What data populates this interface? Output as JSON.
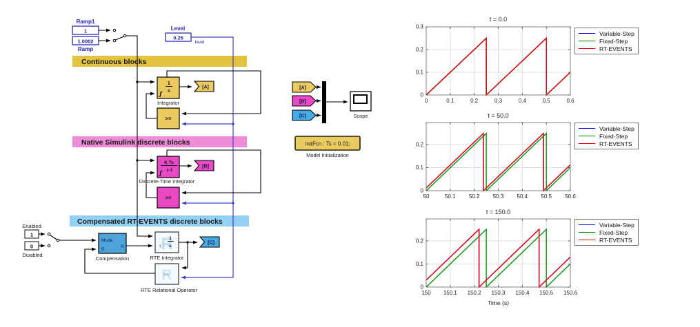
{
  "diagram": {
    "sources": {
      "ramp1_label": "Ramp1",
      "ramp1_value": "1",
      "ramp_value": "1.0002",
      "ramp_label": "Ramp"
    },
    "level": {
      "label": "Level",
      "value": "0.25",
      "wire_label": "level"
    },
    "banners": {
      "continuous": "Continuous blocks",
      "native": "Native Simulink discrete blocks",
      "compensated": "Compensated RT-EVENTS discrete blocks"
    },
    "integrator": {
      "num": "1",
      "den": "s",
      "reset_glyph": "ƒ",
      "label": "Integrator"
    },
    "relop_continuous": {
      "op": ">="
    },
    "dti": {
      "num": "K Ts",
      "den": "z-1",
      "reset_glyph": "ƒ",
      "label": "Discrete-Time Integrator"
    },
    "relop_discrete": {
      "op": ">="
    },
    "goto_tags": {
      "a": "[A]",
      "b": "[B]",
      "c": "[C]"
    },
    "enable": {
      "enabled_label": "Enabled",
      "enabled_value": "1",
      "disabled_value": "0",
      "disabled_label": "Disabled"
    },
    "compensation": {
      "port_mode": "Mode",
      "port_r_in": "R",
      "port_r_out": "R",
      "label": "Compensation"
    },
    "rte_integrator": {
      "num": "1",
      "den": "s",
      "arrow": "↑",
      "watermark": "R",
      "label": "RTE Integrator"
    },
    "rte_relop": {
      "op": ">=",
      "watermark": "R",
      "label": "RTE Relational Operator"
    },
    "from_tags": {
      "a": "[A]",
      "b": "[B]",
      "c": "[C]"
    },
    "scope": {
      "label": "Scope"
    },
    "initfcn": {
      "text": "InitFcn : Ts = 0.01;",
      "label": "Model Initialization"
    }
  },
  "colors": {
    "yellow_banner": "#E3C23E",
    "yellow_block": "#EBCA5F",
    "pink_banner": "#EE8CDA",
    "pink_block": "#EA49C6",
    "blue_banner": "#92D1F5",
    "blue_block": "#4FA3DB",
    "rte_block_fill": "#F4FAFE",
    "goto_c_fill": "#45ABE5",
    "wire_blue": "#3C3CC8",
    "navy": "#1C1CB4",
    "mux_fill": "#000000"
  },
  "chart_data": [
    {
      "type": "line",
      "title": "t = 0.0",
      "xlabel": "",
      "ylabel": "",
      "xlim": [
        0,
        0.6
      ],
      "ylim": [
        0,
        0.3
      ],
      "grid": true,
      "legend_position": "right-outside",
      "xtick_values": [
        0,
        0.1,
        0.2,
        0.3,
        0.4,
        0.5,
        0.6
      ],
      "xtick_labels": [
        "0",
        "0.1",
        "0.2",
        "0.3",
        "0.4",
        "0.5",
        "0.6"
      ],
      "ytick_values": [
        0,
        0.1,
        0.2,
        0.3
      ],
      "ytick_labels": [
        "0",
        "0.1",
        "0.2",
        "0.3"
      ],
      "series": [
        {
          "name": "Variable-Step",
          "color": "#0000EE",
          "points": [
            [
              0,
              0
            ],
            [
              0.25,
              0.25
            ],
            [
              0.25,
              0
            ],
            [
              0.5,
              0.25
            ],
            [
              0.5,
              0
            ],
            [
              0.6,
              0.1
            ]
          ]
        },
        {
          "name": "Fixed-Step",
          "color": "#009500",
          "points": [
            [
              0,
              0
            ],
            [
              0.25,
              0.25
            ],
            [
              0.25,
              0
            ],
            [
              0.5,
              0.25
            ],
            [
              0.5,
              0
            ],
            [
              0.6,
              0.1
            ]
          ]
        },
        {
          "name": "RT-EVENTS",
          "color": "#F40000",
          "points": [
            [
              0,
              0
            ],
            [
              0.25,
              0.25
            ],
            [
              0.25,
              0
            ],
            [
              0.5,
              0.25
            ],
            [
              0.5,
              0
            ],
            [
              0.6,
              0.1
            ]
          ]
        }
      ]
    },
    {
      "type": "line",
      "title": "t = 50.0",
      "xlabel": "",
      "ylabel": "",
      "xlim": [
        50,
        50.6
      ],
      "ylim": [
        0,
        0.295
      ],
      "grid": true,
      "legend_position": "right-outside",
      "xtick_values": [
        50,
        50.1,
        50.2,
        50.3,
        50.4,
        50.5,
        50.6
      ],
      "xtick_labels": [
        "50",
        "50.1",
        "50.2",
        "50.3",
        "50.4",
        "50.5",
        "50.6"
      ],
      "ytick_values": [
        0,
        0.1,
        0.2
      ],
      "ytick_labels": [
        "0",
        "0.1",
        "0.2"
      ],
      "series": [
        {
          "name": "Variable-Step",
          "color": "#0000EE",
          "points": [
            [
              50,
              0.012
            ],
            [
              50.238,
              0.248
            ],
            [
              50.238,
              0
            ],
            [
              50.488,
              0.248
            ],
            [
              50.488,
              0
            ],
            [
              50.6,
              0.112
            ]
          ]
        },
        {
          "name": "Fixed-Step",
          "color": "#009500",
          "points": [
            [
              50,
              0
            ],
            [
              50.25,
              0.248
            ],
            [
              50.25,
              0
            ],
            [
              50.5,
              0.248
            ],
            [
              50.5,
              0
            ],
            [
              50.6,
              0.1
            ]
          ]
        },
        {
          "name": "RT-EVENTS",
          "color": "#F40000",
          "points": [
            [
              50,
              0.012
            ],
            [
              50.238,
              0.248
            ],
            [
              50.238,
              0
            ],
            [
              50.488,
              0.248
            ],
            [
              50.488,
              0
            ],
            [
              50.6,
              0.112
            ]
          ]
        }
      ]
    },
    {
      "type": "line",
      "title": "t = 150.0",
      "xlabel": "Time (s)",
      "ylabel": "",
      "xlim": [
        150,
        150.6
      ],
      "ylim": [
        0,
        0.295
      ],
      "grid": true,
      "legend_position": "right-outside",
      "xtick_values": [
        150,
        150.1,
        150.2,
        150.3,
        150.4,
        150.5,
        150.6
      ],
      "xtick_labels": [
        "150",
        "150.1",
        "150.2",
        "150.3",
        "150.4",
        "150.5",
        "150.6"
      ],
      "ytick_values": [
        0,
        0.1,
        0.2
      ],
      "ytick_labels": [
        "0",
        "0.1",
        "0.2"
      ],
      "series": [
        {
          "name": "Variable-Step",
          "color": "#0000EE",
          "points": [
            [
              150,
              0.03
            ],
            [
              150.22,
              0.25
            ],
            [
              150.22,
              0
            ],
            [
              150.47,
              0.25
            ],
            [
              150.47,
              0
            ],
            [
              150.6,
              0.13
            ]
          ]
        },
        {
          "name": "Fixed-Step",
          "color": "#009500",
          "points": [
            [
              150,
              0
            ],
            [
              150.25,
              0.25
            ],
            [
              150.25,
              0
            ],
            [
              150.5,
              0.25
            ],
            [
              150.5,
              0
            ],
            [
              150.6,
              0.1
            ]
          ]
        },
        {
          "name": "RT-EVENTS",
          "color": "#F40000",
          "points": [
            [
              150,
              0.03
            ],
            [
              150.22,
              0.25
            ],
            [
              150.22,
              0
            ],
            [
              150.47,
              0.25
            ],
            [
              150.47,
              0
            ],
            [
              150.6,
              0.13
            ]
          ]
        }
      ]
    }
  ]
}
